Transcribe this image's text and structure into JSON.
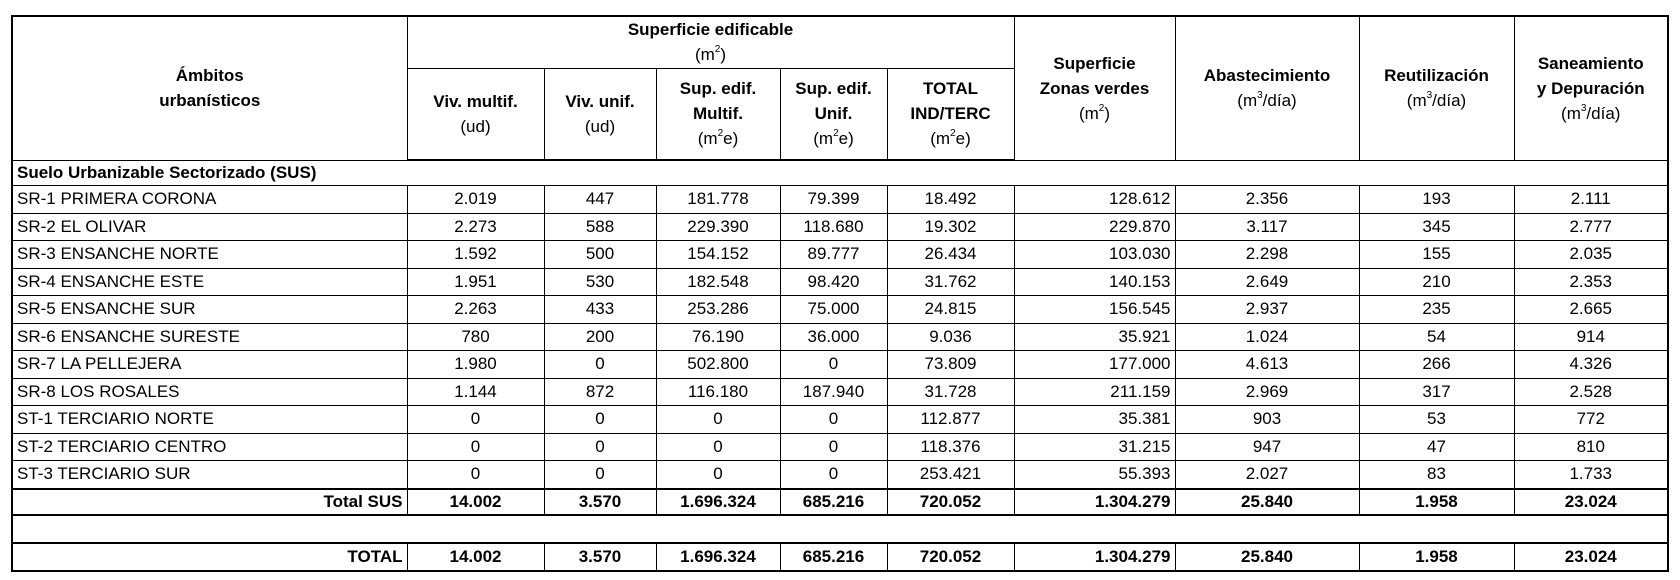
{
  "header": {
    "ambitos": "Ámbitos",
    "ambitos2": "urbanísticos",
    "sup_edificable": "Superficie edificable",
    "sup_edificable_unit_base": "(m",
    "sup_edificable_unit_exp": "2",
    "sup_edificable_unit_end": ")",
    "viv_multif": "Viv. multif.",
    "viv_unif": "Viv. unif.",
    "ud": "(ud)",
    "sup_edif_multif_1": "Sup. edif.",
    "sup_edif_multif_2": "Multif.",
    "sup_edif_unif_1": "Sup. edif.",
    "sup_edif_unif_2": "Unif.",
    "total_1": "TOTAL",
    "total_2": "IND/TERC",
    "m2e_base": "(m",
    "m2e_exp": "2",
    "m2e_end": "e)",
    "zonas_1": "Superficie",
    "zonas_2": "Zonas verdes",
    "m2_base": "(m",
    "m2_exp": "2",
    "m2_end": ")",
    "abastecimiento": "Abastecimiento",
    "reutilizacion": "Reutilización",
    "saneamiento_1": "Saneamiento",
    "saneamiento_2": "y Depuración",
    "m3_base": "(m",
    "m3_exp": "3",
    "m3_end": "/día)"
  },
  "section": "Suelo Urbanizable Sectorizado (SUS)",
  "rows": [
    [
      "SR-1 PRIMERA CORONA",
      "2.019",
      "447",
      "181.778",
      "79.399",
      "18.492",
      "128.612",
      "2.356",
      "193",
      "2.111"
    ],
    [
      "SR-2 EL OLIVAR",
      "2.273",
      "588",
      "229.390",
      "118.680",
      "19.302",
      "229.870",
      "3.117",
      "345",
      "2.777"
    ],
    [
      "SR-3 ENSANCHE NORTE",
      "1.592",
      "500",
      "154.152",
      "89.777",
      "26.434",
      "103.030",
      "2.298",
      "155",
      "2.035"
    ],
    [
      "SR-4 ENSANCHE ESTE",
      "1.951",
      "530",
      "182.548",
      "98.420",
      "31.762",
      "140.153",
      "2.649",
      "210",
      "2.353"
    ],
    [
      "SR-5 ENSANCHE SUR",
      "2.263",
      "433",
      "253.286",
      "75.000",
      "24.815",
      "156.545",
      "2.937",
      "235",
      "2.665"
    ],
    [
      "SR-6 ENSANCHE SURESTE",
      "780",
      "200",
      "76.190",
      "36.000",
      "9.036",
      "35.921",
      "1.024",
      "54",
      "914"
    ],
    [
      "SR-7 LA PELLEJERA",
      "1.980",
      "0",
      "502.800",
      "0",
      "73.809",
      "177.000",
      "4.613",
      "266",
      "4.326"
    ],
    [
      "SR-8 LOS ROSALES",
      "1.144",
      "872",
      "116.180",
      "187.940",
      "31.728",
      "211.159",
      "2.969",
      "317",
      "2.528"
    ],
    [
      "ST-1 TERCIARIO NORTE",
      "0",
      "0",
      "0",
      "0",
      "112.877",
      "35.381",
      "903",
      "53",
      "772"
    ],
    [
      "ST-2 TERCIARIO CENTRO",
      "0",
      "0",
      "0",
      "0",
      "118.376",
      "31.215",
      "947",
      "47",
      "810"
    ],
    [
      "ST-3 TERCIARIO SUR",
      "0",
      "0",
      "0",
      "0",
      "253.421",
      "55.393",
      "2.027",
      "83",
      "1.733"
    ]
  ],
  "total_sus": [
    "Total SUS",
    "14.002",
    "3.570",
    "1.696.324",
    "685.216",
    "720.052",
    "1.304.279",
    "25.840",
    "1.958",
    "23.024"
  ],
  "total": [
    "TOTAL",
    "14.002",
    "3.570",
    "1.696.324",
    "685.216",
    "720.052",
    "1.304.279",
    "25.840",
    "1.958",
    "23.024"
  ]
}
